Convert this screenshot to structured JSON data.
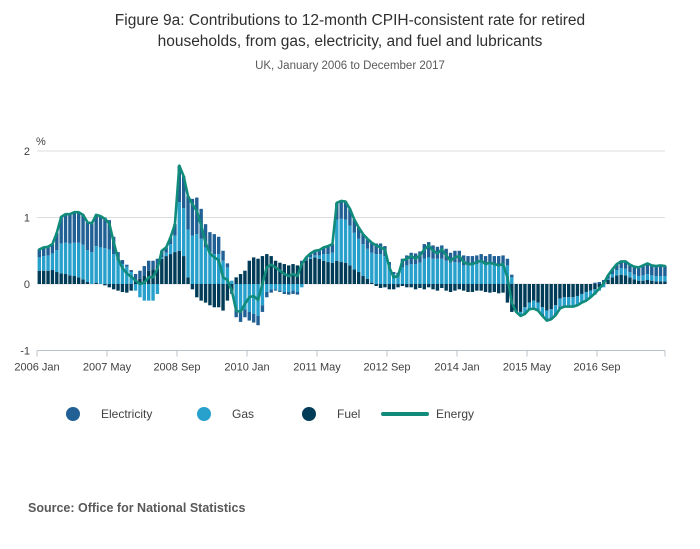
{
  "header": {
    "title": "Figure 9a: Contributions to 12-month CPIH-consistent rate for retired households, from gas, electricity, and fuel and lubricants",
    "subtitle": "UK, January 2006 to December 2017"
  },
  "legend": {
    "items": [
      {
        "label": "Electricity",
        "color": "#206095",
        "marker": "dot"
      },
      {
        "label": "Gas",
        "color": "#27a0cc",
        "marker": "dot"
      },
      {
        "label": "Fuel",
        "color": "#003c57",
        "marker": "dot"
      },
      {
        "label": "Energy",
        "color": "#118c7b",
        "marker": "line"
      }
    ]
  },
  "source": "Source: Office for National Statistics",
  "chart_data": {
    "type": "bar",
    "subtype": "stacked-monthly-bars-with-line-overlay",
    "title": "Figure 9a: Contributions to 12-month CPIH-consistent rate for retired households, from gas, electricity, and fuel and lubricants",
    "subtitle": "UK, January 2006 to December 2017",
    "xlabel": "",
    "ylabel": "%",
    "ylim": [
      -1,
      2
    ],
    "yticks": [
      2,
      1,
      0,
      -1
    ],
    "grid": true,
    "legend_position": "bottom",
    "x": {
      "start": "2006 Jan",
      "end": "2017 Dec",
      "interval": "month",
      "count": 144
    },
    "x_ticks": [
      "2006 Jan",
      "2007 May",
      "2008 Sep",
      "2010 Jan",
      "2011 May",
      "2012 Sep",
      "2014 Jan",
      "2015 May",
      "2016 Sep"
    ],
    "series": [
      {
        "name": "Fuel",
        "color": "#003c57",
        "values": [
          0.2,
          0.2,
          0.2,
          0.21,
          0.18,
          0.16,
          0.15,
          0.13,
          0.12,
          0.1,
          0.07,
          0.03,
          0.0,
          0.02,
          0.0,
          -0.02,
          -0.05,
          -0.08,
          -0.1,
          -0.12,
          -0.13,
          -0.1,
          0.05,
          0.08,
          0.12,
          0.2,
          0.22,
          0.28,
          0.38,
          0.42,
          0.45,
          0.48,
          0.5,
          0.42,
          0.1,
          -0.08,
          -0.2,
          -0.25,
          -0.28,
          -0.32,
          -0.35,
          -0.35,
          -0.4,
          -0.25,
          -0.1,
          0.1,
          0.15,
          0.2,
          0.35,
          0.4,
          0.38,
          0.42,
          0.45,
          0.42,
          0.35,
          0.32,
          0.3,
          0.28,
          0.3,
          0.28,
          0.33,
          0.35,
          0.38,
          0.4,
          0.38,
          0.35,
          0.33,
          0.32,
          0.35,
          0.33,
          0.32,
          0.28,
          0.22,
          0.18,
          0.12,
          0.08,
          0.02,
          -0.03,
          -0.06,
          -0.05,
          -0.08,
          -0.08,
          -0.05,
          -0.03,
          -0.05,
          -0.05,
          -0.08,
          -0.06,
          -0.08,
          -0.05,
          -0.08,
          -0.1,
          -0.06,
          -0.1,
          -0.12,
          -0.1,
          -0.08,
          -0.1,
          -0.12,
          -0.12,
          -0.1,
          -0.1,
          -0.12,
          -0.13,
          -0.12,
          -0.14,
          -0.13,
          -0.28,
          -0.42,
          -0.42,
          -0.42,
          -0.35,
          -0.28,
          -0.25,
          -0.28,
          -0.35,
          -0.4,
          -0.38,
          -0.32,
          -0.22,
          -0.2,
          -0.2,
          -0.2,
          -0.18,
          -0.15,
          -0.12,
          -0.1,
          -0.08,
          -0.05,
          0.02,
          0.06,
          0.1,
          0.13,
          0.14,
          0.13,
          0.1,
          0.07,
          0.05,
          0.05,
          0.06,
          0.05,
          0.04,
          0.04,
          0.04
        ]
      },
      {
        "name": "Gas",
        "color": "#27a0cc",
        "values": [
          0.2,
          0.22,
          0.23,
          0.25,
          0.33,
          0.45,
          0.47,
          0.48,
          0.5,
          0.52,
          0.52,
          0.48,
          0.48,
          0.55,
          0.55,
          0.54,
          0.52,
          0.45,
          0.36,
          0.3,
          0.26,
          0.18,
          -0.1,
          -0.2,
          -0.25,
          -0.25,
          -0.25,
          -0.15,
          0.02,
          0.05,
          0.15,
          0.25,
          0.73,
          0.72,
          0.72,
          0.73,
          0.75,
          0.68,
          0.55,
          0.48,
          0.45,
          0.45,
          0.35,
          0.25,
          0.05,
          -0.38,
          -0.42,
          -0.38,
          -0.42,
          -0.45,
          -0.48,
          -0.32,
          -0.12,
          -0.08,
          -0.08,
          -0.1,
          -0.12,
          -0.12,
          -0.1,
          -0.12,
          -0.05,
          0.0,
          0.02,
          0.03,
          0.05,
          0.1,
          0.12,
          0.15,
          0.62,
          0.65,
          0.65,
          0.6,
          0.55,
          0.5,
          0.48,
          0.45,
          0.45,
          0.45,
          0.45,
          0.42,
          0.28,
          0.15,
          0.12,
          0.25,
          0.28,
          0.3,
          0.3,
          0.32,
          0.38,
          0.4,
          0.38,
          0.38,
          0.38,
          0.35,
          0.32,
          0.33,
          0.32,
          0.28,
          0.28,
          0.3,
          0.3,
          0.32,
          0.3,
          0.32,
          0.3,
          0.3,
          0.3,
          0.28,
          0.1,
          0.0,
          -0.05,
          -0.08,
          -0.08,
          -0.1,
          -0.1,
          -0.1,
          -0.12,
          -0.12,
          -0.12,
          -0.12,
          -0.12,
          -0.12,
          -0.12,
          -0.12,
          -0.12,
          -0.12,
          -0.1,
          -0.08,
          -0.05,
          -0.05,
          0.02,
          0.05,
          0.08,
          0.1,
          0.1,
          0.08,
          0.07,
          0.07,
          0.08,
          0.09,
          0.08,
          0.08,
          0.08,
          0.08
        ]
      },
      {
        "name": "Electricity",
        "color": "#206095",
        "values": [
          0.12,
          0.13,
          0.13,
          0.14,
          0.26,
          0.4,
          0.43,
          0.44,
          0.46,
          0.46,
          0.45,
          0.42,
          0.43,
          0.47,
          0.47,
          0.46,
          0.44,
          0.26,
          0.12,
          0.06,
          0.03,
          0.03,
          0.1,
          0.12,
          0.15,
          0.15,
          0.13,
          0.1,
          0.1,
          0.08,
          0.1,
          0.17,
          0.55,
          0.48,
          0.5,
          0.55,
          0.55,
          0.45,
          0.35,
          0.3,
          0.3,
          0.26,
          0.15,
          0.06,
          -0.05,
          -0.12,
          -0.15,
          -0.12,
          -0.13,
          -0.13,
          -0.14,
          -0.1,
          -0.08,
          -0.05,
          -0.02,
          -0.02,
          -0.03,
          -0.04,
          -0.05,
          -0.04,
          0.02,
          0.05,
          0.06,
          0.07,
          0.08,
          0.1,
          0.12,
          0.13,
          0.25,
          0.27,
          0.27,
          0.25,
          0.2,
          0.17,
          0.15,
          0.15,
          0.15,
          0.16,
          0.16,
          0.15,
          0.05,
          0.03,
          0.05,
          0.13,
          0.15,
          0.17,
          0.16,
          0.17,
          0.22,
          0.23,
          0.2,
          0.18,
          0.2,
          0.18,
          0.15,
          0.17,
          0.18,
          0.15,
          0.14,
          0.12,
          0.13,
          0.13,
          0.12,
          0.13,
          0.12,
          0.12,
          0.13,
          0.1,
          0.04,
          0.0,
          -0.01,
          -0.02,
          -0.02,
          -0.02,
          -0.02,
          -0.03,
          -0.03,
          -0.03,
          -0.03,
          -0.03,
          -0.02,
          -0.02,
          -0.02,
          -0.02,
          -0.01,
          -0.01,
          0.0,
          0.02,
          0.03,
          0.04,
          0.05,
          0.07,
          0.09,
          0.1,
          0.11,
          0.11,
          0.12,
          0.13,
          0.15,
          0.16,
          0.15,
          0.15,
          0.16,
          0.15
        ]
      }
    ],
    "line": {
      "name": "Energy",
      "color": "#118c7b",
      "values": [
        0.52,
        0.55,
        0.56,
        0.6,
        0.77,
        1.01,
        1.05,
        1.05,
        1.08,
        1.08,
        1.04,
        0.93,
        0.91,
        1.04,
        1.02,
        0.98,
        0.91,
        0.63,
        0.38,
        0.24,
        0.16,
        0.11,
        0.05,
        0.0,
        0.02,
        0.1,
        0.1,
        0.23,
        0.5,
        0.55,
        0.7,
        0.9,
        1.78,
        1.62,
        1.32,
        1.2,
        1.1,
        0.88,
        0.62,
        0.46,
        0.4,
        0.36,
        0.1,
        0.06,
        -0.1,
        -0.4,
        -0.42,
        -0.3,
        -0.2,
        -0.18,
        -0.24,
        0.0,
        0.25,
        0.29,
        0.25,
        0.2,
        0.15,
        0.12,
        0.15,
        0.12,
        0.3,
        0.4,
        0.46,
        0.5,
        0.51,
        0.55,
        0.57,
        0.6,
        1.22,
        1.25,
        1.24,
        1.13,
        0.97,
        0.85,
        0.75,
        0.68,
        0.62,
        0.58,
        0.55,
        0.52,
        0.25,
        0.1,
        0.12,
        0.35,
        0.38,
        0.42,
        0.38,
        0.43,
        0.52,
        0.58,
        0.5,
        0.46,
        0.52,
        0.43,
        0.35,
        0.4,
        0.42,
        0.33,
        0.3,
        0.3,
        0.33,
        0.35,
        0.3,
        0.32,
        0.3,
        0.28,
        0.3,
        0.1,
        -0.28,
        -0.42,
        -0.48,
        -0.45,
        -0.38,
        -0.37,
        -0.4,
        -0.48,
        -0.55,
        -0.53,
        -0.47,
        -0.37,
        -0.34,
        -0.34,
        -0.34,
        -0.32,
        -0.28,
        -0.25,
        -0.2,
        -0.14,
        -0.07,
        0.01,
        0.13,
        0.22,
        0.3,
        0.34,
        0.34,
        0.29,
        0.26,
        0.25,
        0.28,
        0.31,
        0.28,
        0.27,
        0.28,
        0.27
      ]
    }
  }
}
